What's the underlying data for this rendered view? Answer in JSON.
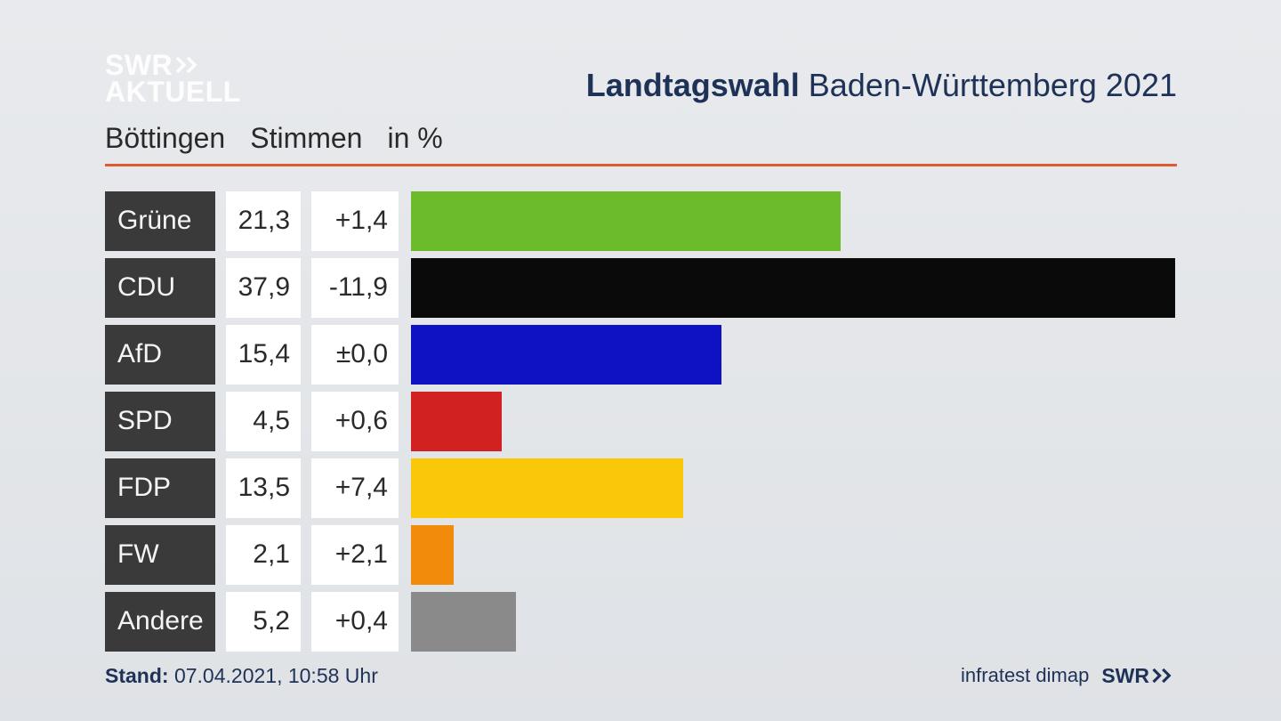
{
  "logo": {
    "line1": "SWR",
    "line2": "AKTUELL"
  },
  "title": {
    "bold": "Landtagswahl",
    "rest": " Baden-Württemberg 2021"
  },
  "subhead": {
    "location": "Böttingen",
    "col_votes": "Stimmen",
    "col_pct": "in %"
  },
  "rule_color": "#e15a2f",
  "max_value": 37.9,
  "bar_track_width": 859,
  "parties": [
    {
      "name": "Grüne",
      "value": "21,3",
      "num": 21.3,
      "change": "+1,4",
      "color": "#6cbb2a"
    },
    {
      "name": "CDU",
      "value": "37,9",
      "num": 37.9,
      "change": "-11,9",
      "color": "#0a0a0a"
    },
    {
      "name": "AfD",
      "value": "15,4",
      "num": 15.4,
      "change": "±0,0",
      "color": "#0f12c3"
    },
    {
      "name": "SPD",
      "value": "4,5",
      "num": 4.5,
      "change": "+0,6",
      "color": "#d22121"
    },
    {
      "name": "FDP",
      "value": "13,5",
      "num": 13.5,
      "change": "+7,4",
      "color": "#f9c909"
    },
    {
      "name": "FW",
      "value": "2,1",
      "num": 2.1,
      "change": "+2,1",
      "color": "#f28a0b"
    },
    {
      "name": "Andere",
      "value": "5,2",
      "num": 5.2,
      "change": "+0,4",
      "color": "#8a8a8a"
    }
  ],
  "footer": {
    "stand_label": "Stand:",
    "stand_value": " 07.04.2021, 10:58 Uhr",
    "credit_source": "infratest dimap",
    "credit_brand": "SWR"
  },
  "colors": {
    "text_dark": "#1e3258",
    "cell_name_bg": "#3a3a3a",
    "cell_name_fg": "#f5f5f5",
    "cell_value_bg": "#ffffff"
  }
}
